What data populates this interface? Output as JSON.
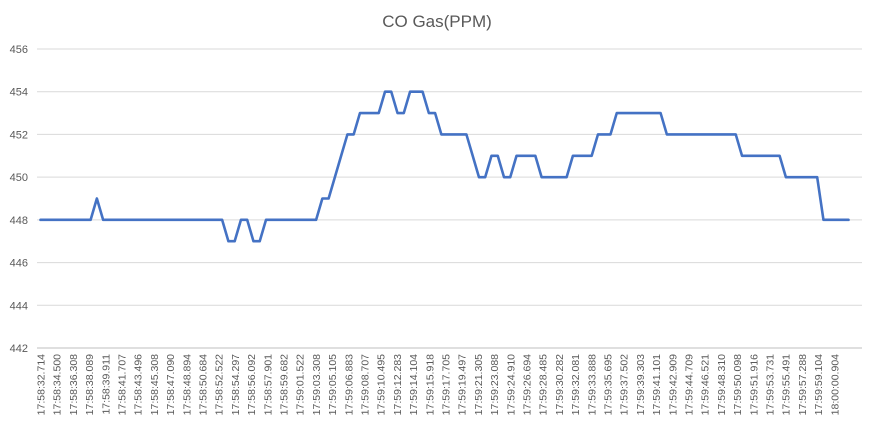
{
  "chart_data": {
    "type": "line",
    "title": "CO Gas(PPM)",
    "xlabel": "",
    "ylabel": "",
    "ylim": [
      442,
      456
    ],
    "y_ticks": [
      442,
      444,
      446,
      448,
      450,
      452,
      454,
      456
    ],
    "grid": true,
    "legend": "none",
    "x_tick_labels": [
      "17:58:32.714",
      "17:58:34.500",
      "17:58:36.308",
      "17:58:38.089",
      "17:58:39.911",
      "17:58:41.707",
      "17:58:43.496",
      "17:58:45.308",
      "17:58:47.090",
      "17:58:48.894",
      "17:58:50.684",
      "17:58:52.522",
      "17:58:54.297",
      "17:58:56.092",
      "17:58:57.901",
      "17:58:59.682",
      "17:59:01.522",
      "17:59:03.308",
      "17:59:05.105",
      "17:59:06.883",
      "17:59:08.707",
      "17:59:10.495",
      "17:59:12.283",
      "17:59:14.104",
      "17:59:15.918",
      "17:59:17.705",
      "17:59:19.497",
      "17:59:21.305",
      "17:59:23.088",
      "17:59:24.910",
      "17:59:26.694",
      "17:59:28.485",
      "17:59:30.282",
      "17:59:32.081",
      "17:59:33.888",
      "17:59:35.695",
      "17:59:37.502",
      "17:59:39.303",
      "17:59:41.101",
      "17:59:42.909",
      "17:59:44.709",
      "17:59:46.521",
      "17:59:48.310",
      "17:59:50.098",
      "17:59:51.916",
      "17:59:53.731",
      "17:59:55.491",
      "17:59:57.288",
      "17:59:59.104",
      "18:00:00.904"
    ],
    "series": [
      {
        "color": "#4472c4",
        "values": [
          448,
          448,
          448,
          448,
          448,
          448,
          448,
          448,
          448,
          449,
          448,
          448,
          448,
          448,
          448,
          448,
          448,
          448,
          448,
          448,
          448,
          448,
          448,
          448,
          448,
          448,
          448,
          448,
          448,
          448,
          447,
          447,
          448,
          448,
          447,
          447,
          448,
          448,
          448,
          448,
          448,
          448,
          448,
          448,
          448,
          449,
          449,
          450,
          451,
          452,
          452,
          453,
          453,
          453,
          453,
          454,
          454,
          453,
          453,
          454,
          454,
          454,
          453,
          453,
          452,
          452,
          452,
          452,
          452,
          451,
          450,
          450,
          451,
          451,
          450,
          450,
          451,
          451,
          451,
          451,
          450,
          450,
          450,
          450,
          450,
          451,
          451,
          451,
          451,
          452,
          452,
          452,
          453,
          453,
          453,
          453,
          453,
          453,
          453,
          453,
          452,
          452,
          452,
          452,
          452,
          452,
          452,
          452,
          452,
          452,
          452,
          452,
          451,
          451,
          451,
          451,
          451,
          451,
          451,
          450,
          450,
          450,
          450,
          450,
          450,
          448,
          448,
          448,
          448,
          448
        ]
      }
    ]
  }
}
